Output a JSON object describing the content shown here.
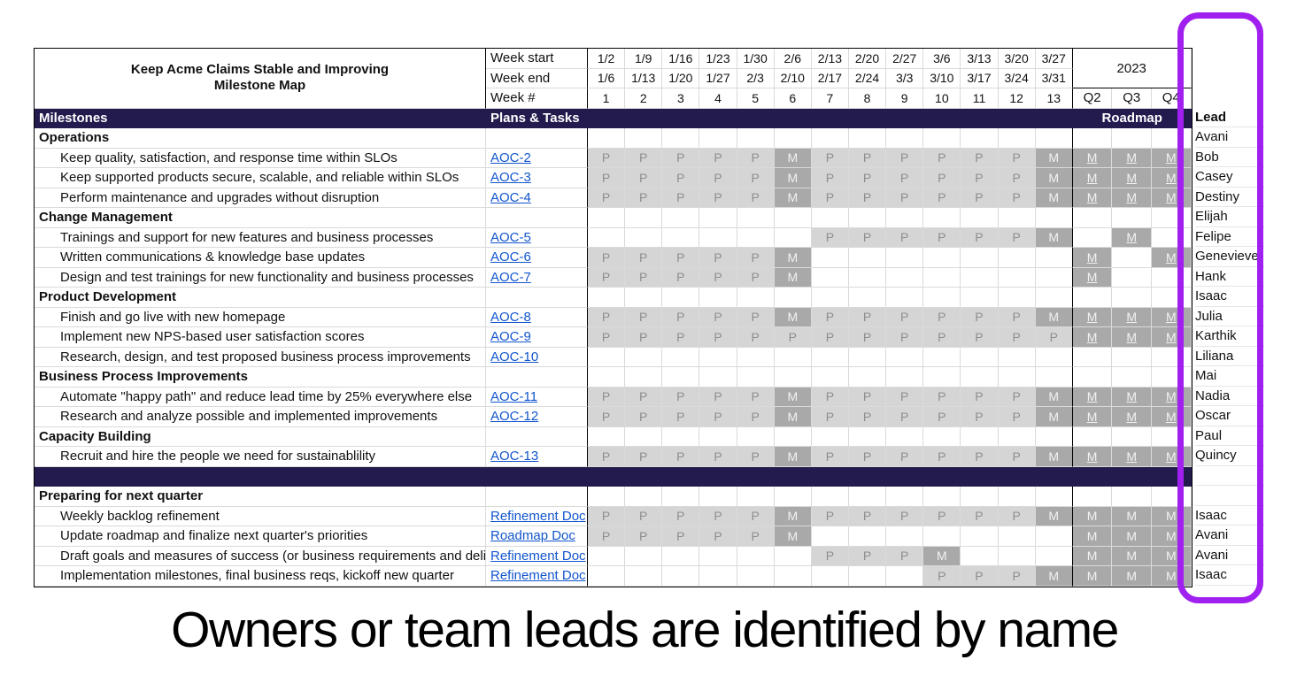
{
  "title": {
    "line1": "Keep Acme Claims Stable and Improving",
    "line2": "Milestone Map"
  },
  "header": {
    "week_start_label": "Week start",
    "week_end_label": "Week end",
    "week_num_label": "Week #",
    "week_starts": [
      "1/2",
      "1/9",
      "1/16",
      "1/23",
      "1/30",
      "2/6",
      "2/13",
      "2/20",
      "2/27",
      "3/6",
      "3/13",
      "3/20",
      "3/27"
    ],
    "week_ends": [
      "1/6",
      "1/13",
      "1/20",
      "1/27",
      "2/3",
      "2/10",
      "2/17",
      "2/24",
      "3/3",
      "3/10",
      "3/17",
      "3/24",
      "3/31"
    ],
    "week_nums": [
      "1",
      "2",
      "3",
      "4",
      "5",
      "6",
      "7",
      "8",
      "9",
      "10",
      "11",
      "12",
      "13"
    ],
    "year": "2023",
    "quarters": [
      "Q2",
      "Q3",
      "Q4"
    ],
    "milestones_label": "Milestones",
    "plans_label": "Plans & Tasks",
    "roadmap_label": "Roadmap",
    "lead_label": "Lead"
  },
  "legend_caption": "Owners or team leads are identified by name",
  "colors": {
    "navy": "#231b4e",
    "p_bg": "#d5d5d5",
    "m_bg": "#a9a9a9",
    "p_text": "#8e8e8e",
    "m_text": "#f2f2f2",
    "link_blue": "#1155cc",
    "highlight_purple": "#a020f0"
  },
  "rows": [
    {
      "type": "section",
      "milestone": "Operations",
      "lead": "Avani",
      "weeks": [
        "",
        "",
        "",
        "",
        "",
        "",
        "",
        "",
        "",
        "",
        "",
        "",
        ""
      ],
      "quarters": [
        "",
        "",
        ""
      ],
      "q_links": false
    },
    {
      "type": "task",
      "milestone": "Keep quality, satisfaction, and response time within SLOs",
      "link": "AOC-2",
      "lead": "Bob",
      "weeks": [
        "P",
        "P",
        "P",
        "P",
        "P",
        "M",
        "P",
        "P",
        "P",
        "P",
        "P",
        "P",
        "M"
      ],
      "quarters": [
        "M",
        "M",
        "M"
      ],
      "q_links": true
    },
    {
      "type": "task",
      "milestone": "Keep supported products secure, scalable, and reliable within SLOs",
      "link": "AOC-3",
      "lead": "Casey",
      "weeks": [
        "P",
        "P",
        "P",
        "P",
        "P",
        "M",
        "P",
        "P",
        "P",
        "P",
        "P",
        "P",
        "M"
      ],
      "quarters": [
        "M",
        "M",
        "M"
      ],
      "q_links": true
    },
    {
      "type": "task",
      "milestone": "Perform maintenance and upgrades without disruption",
      "link": "AOC-4",
      "lead": "Destiny",
      "weeks": [
        "P",
        "P",
        "P",
        "P",
        "P",
        "M",
        "P",
        "P",
        "P",
        "P",
        "P",
        "P",
        "M"
      ],
      "quarters": [
        "M",
        "M",
        "M"
      ],
      "q_links": true
    },
    {
      "type": "section",
      "milestone": "Change Management",
      "lead": "Elijah",
      "weeks": [
        "",
        "",
        "",
        "",
        "",
        "",
        "",
        "",
        "",
        "",
        "",
        "",
        ""
      ],
      "quarters": [
        "",
        "",
        ""
      ],
      "q_links": false
    },
    {
      "type": "task",
      "milestone": "Trainings and support for new features and business processes",
      "link": "AOC-5",
      "lead": "Felipe",
      "weeks": [
        "",
        "",
        "",
        "",
        "",
        "",
        "P",
        "P",
        "P",
        "P",
        "P",
        "P",
        "M"
      ],
      "quarters": [
        "",
        "M",
        ""
      ],
      "q_links": true
    },
    {
      "type": "task",
      "milestone": "Written communications & knowledge base updates",
      "link": "AOC-6",
      "lead": "Genevieve",
      "weeks": [
        "P",
        "P",
        "P",
        "P",
        "P",
        "M",
        "",
        "",
        "",
        "",
        "",
        "",
        ""
      ],
      "quarters": [
        "M",
        "",
        "M"
      ],
      "q_links": true
    },
    {
      "type": "task",
      "milestone": "Design and test trainings for new functionality and business processes",
      "link": "AOC-7",
      "lead": "Hank",
      "weeks": [
        "P",
        "P",
        "P",
        "P",
        "P",
        "M",
        "",
        "",
        "",
        "",
        "",
        "",
        ""
      ],
      "quarters": [
        "M",
        "",
        ""
      ],
      "q_links": true
    },
    {
      "type": "section",
      "milestone": "Product Development",
      "lead": "Isaac",
      "weeks": [
        "",
        "",
        "",
        "",
        "",
        "",
        "",
        "",
        "",
        "",
        "",
        "",
        ""
      ],
      "quarters": [
        "",
        "",
        ""
      ],
      "q_links": false
    },
    {
      "type": "task",
      "milestone": "Finish and go live with new homepage",
      "link": "AOC-8",
      "lead": "Julia",
      "weeks": [
        "P",
        "P",
        "P",
        "P",
        "P",
        "M",
        "P",
        "P",
        "P",
        "P",
        "P",
        "P",
        "M"
      ],
      "quarters": [
        "M",
        "M",
        "M"
      ],
      "q_links": true
    },
    {
      "type": "task",
      "milestone": "Implement new NPS-based user satisfaction scores",
      "link": "AOC-9",
      "lead": "Karthik",
      "weeks": [
        "P",
        "P",
        "P",
        "P",
        "P",
        "P",
        "P",
        "P",
        "P",
        "P",
        "P",
        "P",
        "P"
      ],
      "quarters": [
        "M",
        "M",
        "M"
      ],
      "q_links": true
    },
    {
      "type": "task",
      "milestone": "Research, design, and test proposed business process improvements",
      "link": "AOC-10",
      "lead": "Liliana",
      "weeks": [
        "",
        "",
        "",
        "",
        "",
        "",
        "",
        "",
        "",
        "",
        "",
        "",
        ""
      ],
      "quarters": [
        "",
        "",
        ""
      ],
      "q_links": false
    },
    {
      "type": "section",
      "milestone": "Business Process Improvements",
      "lead": "Mai",
      "weeks": [
        "",
        "",
        "",
        "",
        "",
        "",
        "",
        "",
        "",
        "",
        "",
        "",
        ""
      ],
      "quarters": [
        "",
        "",
        ""
      ],
      "q_links": false
    },
    {
      "type": "task",
      "milestone": "Automate \"happy path\" and reduce lead time by 25% everywhere else",
      "link": "AOC-11",
      "lead": "Nadia",
      "weeks": [
        "P",
        "P",
        "P",
        "P",
        "P",
        "M",
        "P",
        "P",
        "P",
        "P",
        "P",
        "P",
        "M"
      ],
      "quarters": [
        "M",
        "M",
        "M"
      ],
      "q_links": true
    },
    {
      "type": "task",
      "milestone": "Research and analyze possible and implemented improvements",
      "link": "AOC-12",
      "lead": "Oscar",
      "weeks": [
        "P",
        "P",
        "P",
        "P",
        "P",
        "M",
        "P",
        "P",
        "P",
        "P",
        "P",
        "P",
        "M"
      ],
      "quarters": [
        "M",
        "M",
        "M"
      ],
      "q_links": true
    },
    {
      "type": "section",
      "milestone": "Capacity Building",
      "lead": "Paul",
      "weeks": [
        "",
        "",
        "",
        "",
        "",
        "",
        "",
        "",
        "",
        "",
        "",
        "",
        ""
      ],
      "quarters": [
        "",
        "",
        ""
      ],
      "q_links": false
    },
    {
      "type": "task",
      "milestone": "Recruit and hire the people we need for sustainablility",
      "link": "AOC-13",
      "lead": "Quincy",
      "weeks": [
        "P",
        "P",
        "P",
        "P",
        "P",
        "M",
        "P",
        "P",
        "P",
        "P",
        "P",
        "P",
        "M"
      ],
      "quarters": [
        "M",
        "M",
        "M"
      ],
      "q_links": true
    },
    {
      "type": "divider",
      "milestone": "",
      "lead": "",
      "weeks": [],
      "quarters": [],
      "q_links": false
    },
    {
      "type": "section",
      "milestone": "Preparing for next quarter",
      "lead": "",
      "weeks": [
        "",
        "",
        "",
        "",
        "",
        "",
        "",
        "",
        "",
        "",
        "",
        "",
        ""
      ],
      "quarters": [
        "",
        "",
        ""
      ],
      "q_links": false
    },
    {
      "type": "task",
      "milestone": "Weekly backlog refinement",
      "link": "Refinement Doc",
      "lead": "Isaac",
      "weeks": [
        "P",
        "P",
        "P",
        "P",
        "P",
        "M",
        "P",
        "P",
        "P",
        "P",
        "P",
        "P",
        "M"
      ],
      "quarters": [
        "M",
        "M",
        "M"
      ],
      "q_links": false
    },
    {
      "type": "task",
      "milestone": "Update roadmap and finalize next quarter's priorities",
      "link": "Roadmap Doc",
      "lead": "Avani",
      "weeks": [
        "P",
        "P",
        "P",
        "P",
        "P",
        "M",
        "",
        "",
        "",
        "",
        "",
        "",
        ""
      ],
      "quarters": [
        "M",
        "M",
        "M"
      ],
      "q_links": false
    },
    {
      "type": "task",
      "milestone": "Draft goals and measures of success (or business requirements and deliv",
      "link": "Refinement Doc",
      "lead": "Avani",
      "weeks": [
        "",
        "",
        "",
        "",
        "",
        "",
        "P",
        "P",
        "P",
        "M",
        "",
        "",
        ""
      ],
      "quarters": [
        "M",
        "M",
        "M"
      ],
      "q_links": false
    },
    {
      "type": "task",
      "milestone": "Implementation milestones, final business reqs, kickoff new quarter",
      "link": "Refinement Doc",
      "lead": "Isaac",
      "weeks": [
        "",
        "",
        "",
        "",
        "",
        "",
        "",
        "",
        "",
        "P",
        "P",
        "P",
        "M"
      ],
      "quarters": [
        "M",
        "M",
        "M"
      ],
      "q_links": false
    }
  ]
}
